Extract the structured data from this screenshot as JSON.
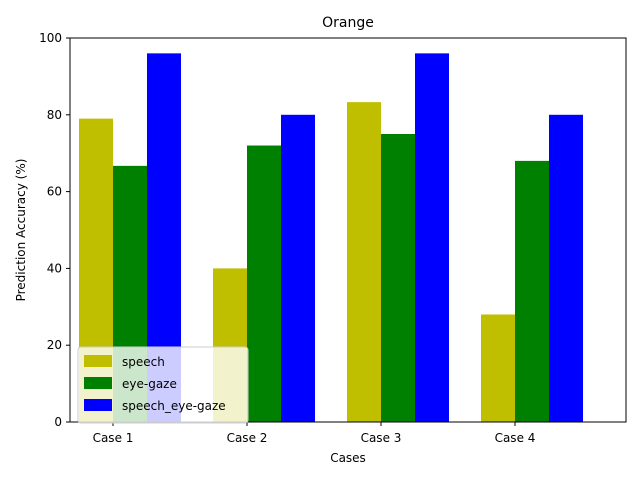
{
  "chart_data": {
    "type": "bar",
    "title": "Orange",
    "xlabel": "Cases",
    "ylabel": "Prediction Accuracy (%)",
    "categories": [
      "Case 1",
      "Case 2",
      "Case 3",
      "Case 4"
    ],
    "ylim": [
      0,
      100
    ],
    "yticks": [
      0,
      20,
      40,
      60,
      80,
      100
    ],
    "grid": false,
    "legend_position": "lower-left",
    "series": [
      {
        "name": "speech",
        "color": "#bfbf00",
        "values": [
          79,
          40,
          83.3,
          28
        ]
      },
      {
        "name": "eye-gaze",
        "color": "#008000",
        "values": [
          66.7,
          72,
          75,
          68
        ]
      },
      {
        "name": "speech_eye-gaze",
        "color": "#0000ff",
        "values": [
          96,
          80,
          96,
          80
        ]
      }
    ]
  }
}
